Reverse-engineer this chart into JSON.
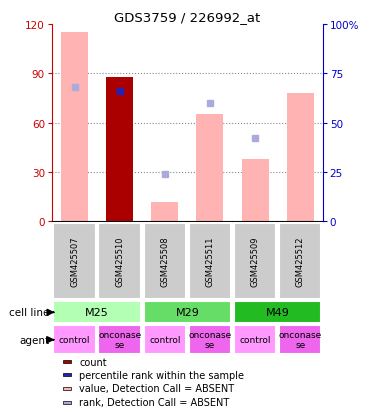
{
  "title": "GDS3759 / 226992_at",
  "samples": [
    "GSM425507",
    "GSM425510",
    "GSM425508",
    "GSM425511",
    "GSM425509",
    "GSM425512"
  ],
  "count_values": [
    null,
    88,
    null,
    null,
    null,
    null
  ],
  "rank_values": [
    null,
    66,
    null,
    null,
    null,
    null
  ],
  "absent_value_bars": [
    115,
    null,
    12,
    65,
    38,
    78
  ],
  "absent_rank_squares": [
    68,
    null,
    24,
    60,
    42,
    null
  ],
  "cell_lines": [
    {
      "label": "M25",
      "cols": [
        0,
        1
      ],
      "color": "#b3ffb3"
    },
    {
      "label": "M29",
      "cols": [
        2,
        3
      ],
      "color": "#66dd66"
    },
    {
      "label": "M49",
      "cols": [
        4,
        5
      ],
      "color": "#22bb22"
    }
  ],
  "agents": [
    "control",
    "onconase\nse",
    "control",
    "onconase\nse",
    "control",
    "onconase\nse"
  ],
  "agent_colors": [
    "#ff99ff",
    "#ee66ee",
    "#ff99ff",
    "#ee66ee",
    "#ff99ff",
    "#ee66ee"
  ],
  "ylim_left": [
    0,
    120
  ],
  "ylim_right": [
    0,
    100
  ],
  "yticks_left": [
    0,
    30,
    60,
    90,
    120
  ],
  "yticks_right": [
    0,
    25,
    50,
    75,
    100
  ],
  "ytick_labels_right": [
    "0",
    "25",
    "50",
    "75",
    "100%"
  ],
  "colors": {
    "count_bar": "#aa0000",
    "rank_square": "#2222bb",
    "absent_value_bar": "#ffb3b3",
    "absent_rank_square": "#aaaadd",
    "grid": "#888888",
    "axis_label_left": "#cc0000",
    "axis_label_right": "#0000cc",
    "sample_bg": "#cccccc"
  },
  "legend": [
    {
      "label": "count",
      "color": "#aa0000"
    },
    {
      "label": "percentile rank within the sample",
      "color": "#2222bb"
    },
    {
      "label": "value, Detection Call = ABSENT",
      "color": "#ffb3b3"
    },
    {
      "label": "rank, Detection Call = ABSENT",
      "color": "#aaaadd"
    }
  ]
}
